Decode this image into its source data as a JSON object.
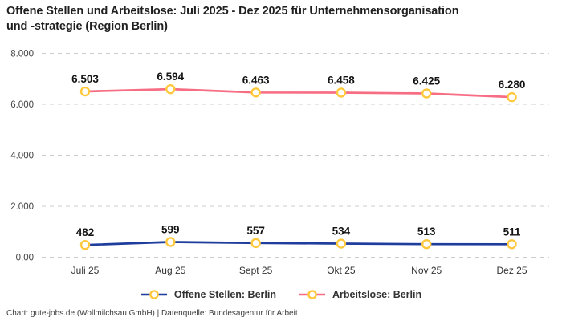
{
  "title_line1": "Offene Stellen und Arbeitslose: Juli 2025 - Dez 2025 für Unternehmensorganisation",
  "title_line2": "und -strategie (Region Berlin)",
  "footer": "Chart: gute-jobs.de (Wollmilchsau GmbH) | Datenquelle: Bundesagentur für Arbeit",
  "colors": {
    "open_positions_line": "#1f3d9c",
    "unemployed_line": "#f76e84",
    "marker_ring": "#ffc83c",
    "marker_fill": "#ffffff",
    "gridline": "#cccccc"
  },
  "chart_data": {
    "type": "line",
    "title": "Offene Stellen und Arbeitslose: Juli 2025 - Dez 2025 für Unternehmensorganisation und -strategie (Region Berlin)",
    "categories": [
      "Juli 25",
      "Aug 25",
      "Sept 25",
      "Okt 25",
      "Nov 25",
      "Dez 25"
    ],
    "series": [
      {
        "name": "Offene Stellen: Berlin",
        "color": "#1f3d9c",
        "values": [
          482,
          599,
          557,
          534,
          513,
          511
        ],
        "point_labels": [
          "482",
          "599",
          "557",
          "534",
          "513",
          "511"
        ]
      },
      {
        "name": "Arbeitslose: Berlin",
        "color": "#f76e84",
        "values": [
          6503,
          6594,
          6463,
          6458,
          6425,
          6280
        ],
        "point_labels": [
          "6.503",
          "6.594",
          "6.463",
          "6.458",
          "6.425",
          "6.280"
        ]
      }
    ],
    "y_ticks": [
      {
        "value": 0,
        "label": "0,00"
      },
      {
        "value": 2000,
        "label": "2.000"
      },
      {
        "value": 4000,
        "label": "4.000"
      },
      {
        "value": 6000,
        "label": "6.000"
      },
      {
        "value": 8000,
        "label": "8.000"
      }
    ],
    "ylim": [
      0,
      8000
    ],
    "xlabel": "",
    "ylabel": "",
    "grid": "horizontal-dashed",
    "legend_position": "bottom",
    "marker_color": "#ffc83c"
  }
}
